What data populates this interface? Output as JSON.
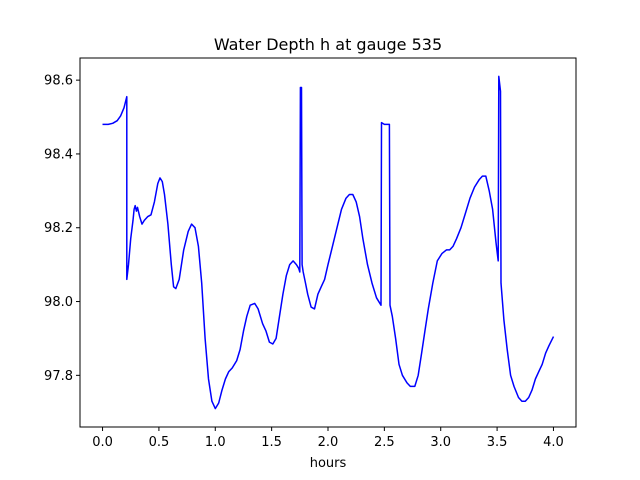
{
  "chart_data": {
    "type": "line",
    "title": "Water Depth h at gauge 535",
    "xlabel": "hours",
    "ylabel": "",
    "xlim": [
      -0.2,
      4.2
    ],
    "ylim": [
      97.66,
      98.66
    ],
    "xticks": [
      0.0,
      0.5,
      1.0,
      1.5,
      2.0,
      2.5,
      3.0,
      3.5,
      4.0
    ],
    "xtick_labels": [
      "0.0",
      "0.5",
      "1.0",
      "1.5",
      "2.0",
      "2.5",
      "3.0",
      "3.5",
      "4.0"
    ],
    "yticks": [
      97.8,
      98.0,
      98.2,
      98.4,
      98.6
    ],
    "ytick_labels": [
      "97.8",
      "98.0",
      "98.2",
      "98.4",
      "98.6"
    ],
    "grid": false,
    "series": [
      {
        "color": "#0000ff",
        "points": [
          [
            0.0,
            98.48
          ],
          [
            0.05,
            98.48
          ],
          [
            0.09,
            98.483
          ],
          [
            0.13,
            98.49
          ],
          [
            0.16,
            98.503
          ],
          [
            0.19,
            98.525
          ],
          [
            0.215,
            98.555
          ],
          [
            0.215,
            98.06
          ],
          [
            0.23,
            98.1
          ],
          [
            0.25,
            98.17
          ],
          [
            0.27,
            98.22
          ],
          [
            0.28,
            98.25
          ],
          [
            0.29,
            98.26
          ],
          [
            0.3,
            98.245
          ],
          [
            0.31,
            98.255
          ],
          [
            0.33,
            98.23
          ],
          [
            0.35,
            98.21
          ],
          [
            0.37,
            98.22
          ],
          [
            0.4,
            98.23
          ],
          [
            0.43,
            98.235
          ],
          [
            0.46,
            98.27
          ],
          [
            0.49,
            98.32
          ],
          [
            0.51,
            98.335
          ],
          [
            0.53,
            98.325
          ],
          [
            0.55,
            98.29
          ],
          [
            0.58,
            98.21
          ],
          [
            0.61,
            98.1
          ],
          [
            0.63,
            98.04
          ],
          [
            0.65,
            98.035
          ],
          [
            0.68,
            98.06
          ],
          [
            0.72,
            98.14
          ],
          [
            0.76,
            98.19
          ],
          [
            0.79,
            98.21
          ],
          [
            0.82,
            98.2
          ],
          [
            0.85,
            98.15
          ],
          [
            0.88,
            98.05
          ],
          [
            0.91,
            97.9
          ],
          [
            0.94,
            97.79
          ],
          [
            0.97,
            97.73
          ],
          [
            1.0,
            97.71
          ],
          [
            1.03,
            97.725
          ],
          [
            1.06,
            97.76
          ],
          [
            1.09,
            97.79
          ],
          [
            1.12,
            97.81
          ],
          [
            1.15,
            97.82
          ],
          [
            1.19,
            97.84
          ],
          [
            1.22,
            97.87
          ],
          [
            1.25,
            97.92
          ],
          [
            1.28,
            97.96
          ],
          [
            1.31,
            97.99
          ],
          [
            1.35,
            97.995
          ],
          [
            1.38,
            97.98
          ],
          [
            1.42,
            97.94
          ],
          [
            1.45,
            97.92
          ],
          [
            1.48,
            97.89
          ],
          [
            1.51,
            97.885
          ],
          [
            1.54,
            97.9
          ],
          [
            1.57,
            97.96
          ],
          [
            1.6,
            98.02
          ],
          [
            1.63,
            98.07
          ],
          [
            1.66,
            98.1
          ],
          [
            1.69,
            98.11
          ],
          [
            1.72,
            98.1
          ],
          [
            1.74,
            98.09
          ],
          [
            1.75,
            98.08
          ],
          [
            1.755,
            98.58
          ],
          [
            1.765,
            98.58
          ],
          [
            1.77,
            98.1
          ],
          [
            1.78,
            98.08
          ],
          [
            1.8,
            98.05
          ],
          [
            1.82,
            98.02
          ],
          [
            1.85,
            97.985
          ],
          [
            1.88,
            97.98
          ],
          [
            1.91,
            98.02
          ],
          [
            1.94,
            98.04
          ],
          [
            1.97,
            98.06
          ],
          [
            2.0,
            98.1
          ],
          [
            2.04,
            98.15
          ],
          [
            2.08,
            98.2
          ],
          [
            2.12,
            98.25
          ],
          [
            2.16,
            98.28
          ],
          [
            2.19,
            98.29
          ],
          [
            2.22,
            98.29
          ],
          [
            2.25,
            98.27
          ],
          [
            2.28,
            98.23
          ],
          [
            2.31,
            98.17
          ],
          [
            2.35,
            98.1
          ],
          [
            2.39,
            98.05
          ],
          [
            2.43,
            98.01
          ],
          [
            2.47,
            97.99
          ],
          [
            2.475,
            98.485
          ],
          [
            2.5,
            98.48
          ],
          [
            2.53,
            98.48
          ],
          [
            2.545,
            98.48
          ],
          [
            2.55,
            97.99
          ],
          [
            2.57,
            97.96
          ],
          [
            2.6,
            97.9
          ],
          [
            2.63,
            97.83
          ],
          [
            2.66,
            97.8
          ],
          [
            2.7,
            97.78
          ],
          [
            2.73,
            97.77
          ],
          [
            2.77,
            97.77
          ],
          [
            2.8,
            97.8
          ],
          [
            2.83,
            97.86
          ],
          [
            2.86,
            97.92
          ],
          [
            2.89,
            97.98
          ],
          [
            2.93,
            98.05
          ],
          [
            2.97,
            98.11
          ],
          [
            3.01,
            98.13
          ],
          [
            3.05,
            98.14
          ],
          [
            3.08,
            98.14
          ],
          [
            3.11,
            98.15
          ],
          [
            3.14,
            98.17
          ],
          [
            3.18,
            98.2
          ],
          [
            3.22,
            98.24
          ],
          [
            3.26,
            98.28
          ],
          [
            3.3,
            98.31
          ],
          [
            3.34,
            98.33
          ],
          [
            3.37,
            98.34
          ],
          [
            3.4,
            98.34
          ],
          [
            3.43,
            98.3
          ],
          [
            3.46,
            98.25
          ],
          [
            3.49,
            98.16
          ],
          [
            3.51,
            98.11
          ],
          [
            3.515,
            98.61
          ],
          [
            3.53,
            98.57
          ],
          [
            3.535,
            98.05
          ],
          [
            3.56,
            97.95
          ],
          [
            3.59,
            97.87
          ],
          [
            3.62,
            97.8
          ],
          [
            3.65,
            97.77
          ],
          [
            3.69,
            97.74
          ],
          [
            3.72,
            97.73
          ],
          [
            3.75,
            97.73
          ],
          [
            3.78,
            97.74
          ],
          [
            3.81,
            97.76
          ],
          [
            3.84,
            97.79
          ],
          [
            3.87,
            97.81
          ],
          [
            3.9,
            97.83
          ],
          [
            3.93,
            97.86
          ],
          [
            3.96,
            97.88
          ],
          [
            4.0,
            97.905
          ]
        ]
      }
    ]
  }
}
